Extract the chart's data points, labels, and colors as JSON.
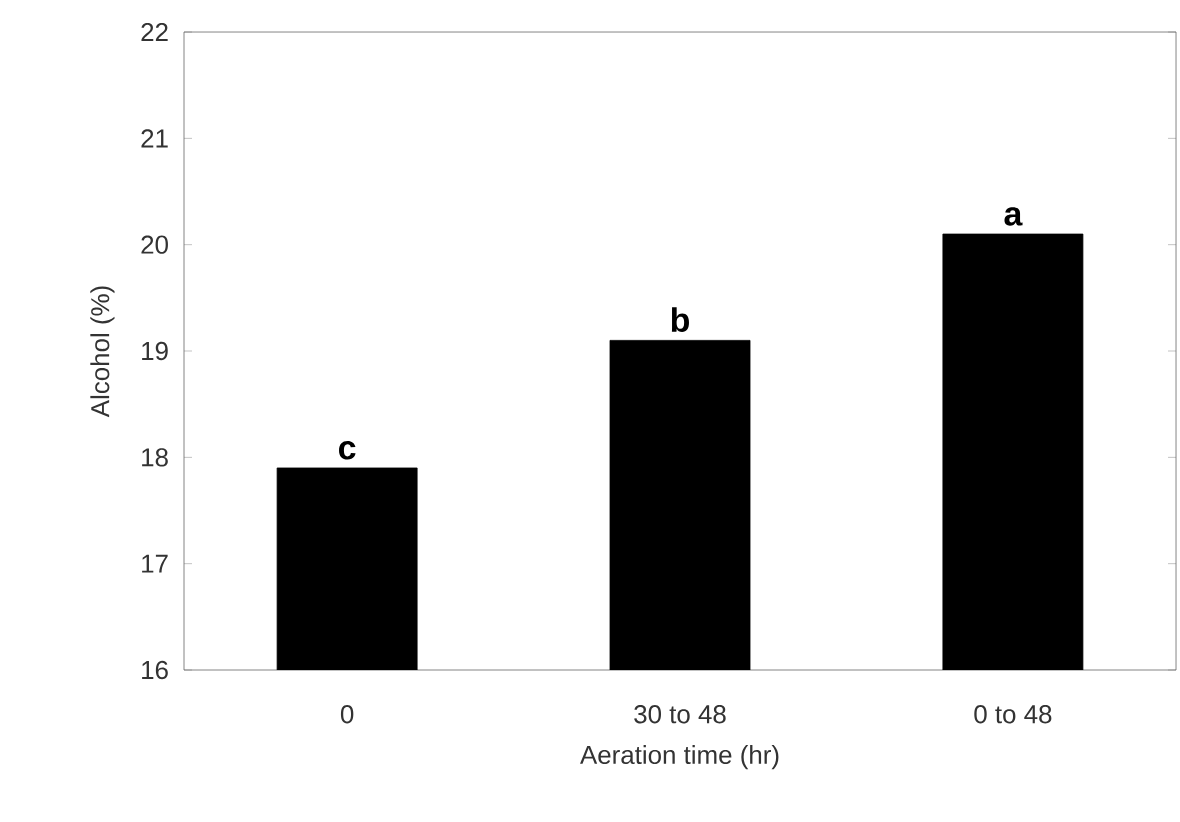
{
  "chart_data": {
    "type": "bar",
    "xlabel": "Aeration time (hr)",
    "ylabel": "Alcohol (%)",
    "categories": [
      "0",
      "30 to 48",
      "0 to 48"
    ],
    "values": [
      17.9,
      19.1,
      20.1
    ],
    "color": "#000000",
    "ylim": [
      16,
      22
    ],
    "yticks": [
      16,
      17,
      18,
      19,
      20,
      21,
      22
    ],
    "grid": false,
    "annotations": [
      {
        "text": "c",
        "x": "0",
        "y": 17.9
      },
      {
        "text": "b",
        "x": "30 to 48",
        "y": 19.1
      },
      {
        "text": "a",
        "x": "0 to 48",
        "y": 20.1
      }
    ]
  }
}
